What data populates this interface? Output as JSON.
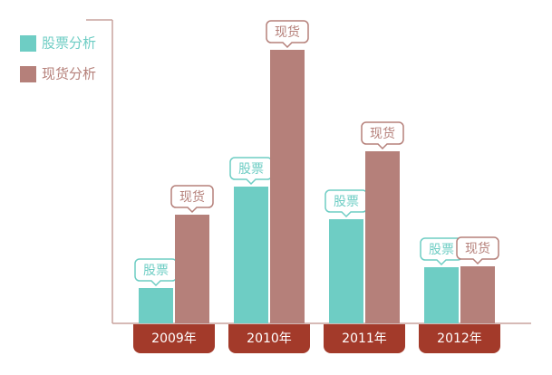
{
  "chart_data": {
    "type": "bar",
    "categories": [
      "2009年",
      "2010年",
      "2011年",
      "2012年"
    ],
    "series": [
      {
        "name": "股票分析",
        "label": "股票",
        "color": "#6ecdc4",
        "values": [
          39,
          151,
          115,
          62
        ]
      },
      {
        "name": "现货分析",
        "label": "现货",
        "color": "#b5807a",
        "values": [
          120,
          302,
          190,
          63
        ]
      }
    ],
    "ylim": [
      0,
      335
    ],
    "tab_color": "#a33a2a"
  }
}
